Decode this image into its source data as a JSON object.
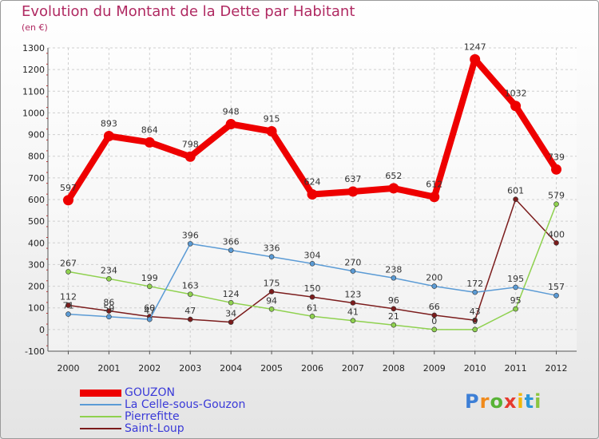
{
  "chart_data": {
    "type": "line",
    "title": "Evolution du Montant de la Dette par Habitant",
    "subtitle": "(en €)",
    "x": [
      "2000",
      "2001",
      "2002",
      "2003",
      "2004",
      "2005",
      "2006",
      "2007",
      "2008",
      "2009",
      "2010",
      "2011",
      "2012"
    ],
    "ylim": [
      -100,
      1300
    ],
    "yticks": [
      -100,
      0,
      100,
      200,
      300,
      400,
      500,
      600,
      700,
      800,
      900,
      1000,
      1100,
      1200,
      1300
    ],
    "grid": true,
    "legend_position": "bottom-left",
    "series": [
      {
        "name": "GOUZON",
        "color": "#ee0000",
        "values": [
          597,
          893,
          864,
          798,
          948,
          915,
          624,
          637,
          652,
          612,
          1247,
          1032,
          739
        ],
        "labels": [
          "597",
          "893",
          "864",
          "798",
          "948",
          "915",
          "624",
          "637",
          "652",
          "612",
          "1247",
          "1032",
          "739"
        ]
      },
      {
        "name": "La Celle-sous-Gouzon",
        "color": "#5b9bd5",
        "values": [
          71,
          59,
          47,
          396,
          366,
          336,
          304,
          270,
          238,
          200,
          172,
          195,
          157
        ],
        "labels": [
          "71",
          "59",
          "47",
          "396",
          "366",
          "336",
          "304",
          "270",
          "238",
          "200",
          "172",
          "195",
          "157"
        ]
      },
      {
        "name": "Pierrefitte",
        "color": "#8fd14f",
        "values": [
          267,
          234,
          199,
          163,
          124,
          94,
          61,
          41,
          21,
          0,
          0,
          95,
          579
        ],
        "labels": [
          "267",
          "234",
          "199",
          "163",
          "124",
          "94",
          "61",
          "41",
          "21",
          "0",
          "0",
          "95",
          "579"
        ]
      },
      {
        "name": "Saint-Loup",
        "color": "#7b1c1c",
        "values": [
          112,
          86,
          60,
          47,
          34,
          175,
          150,
          123,
          96,
          66,
          43,
          601,
          400
        ],
        "labels": [
          "112",
          "86",
          "60",
          "47",
          "34",
          "175",
          "150",
          "123",
          "96",
          "66",
          "43",
          "601",
          "400"
        ]
      }
    ]
  },
  "logo": {
    "text": "Proxiti",
    "colors": [
      "#3d7fd6",
      "#f08a1c",
      "#58b336",
      "#e63a2e",
      "#f2b705",
      "#2c98d8",
      "#8bc53f"
    ]
  }
}
